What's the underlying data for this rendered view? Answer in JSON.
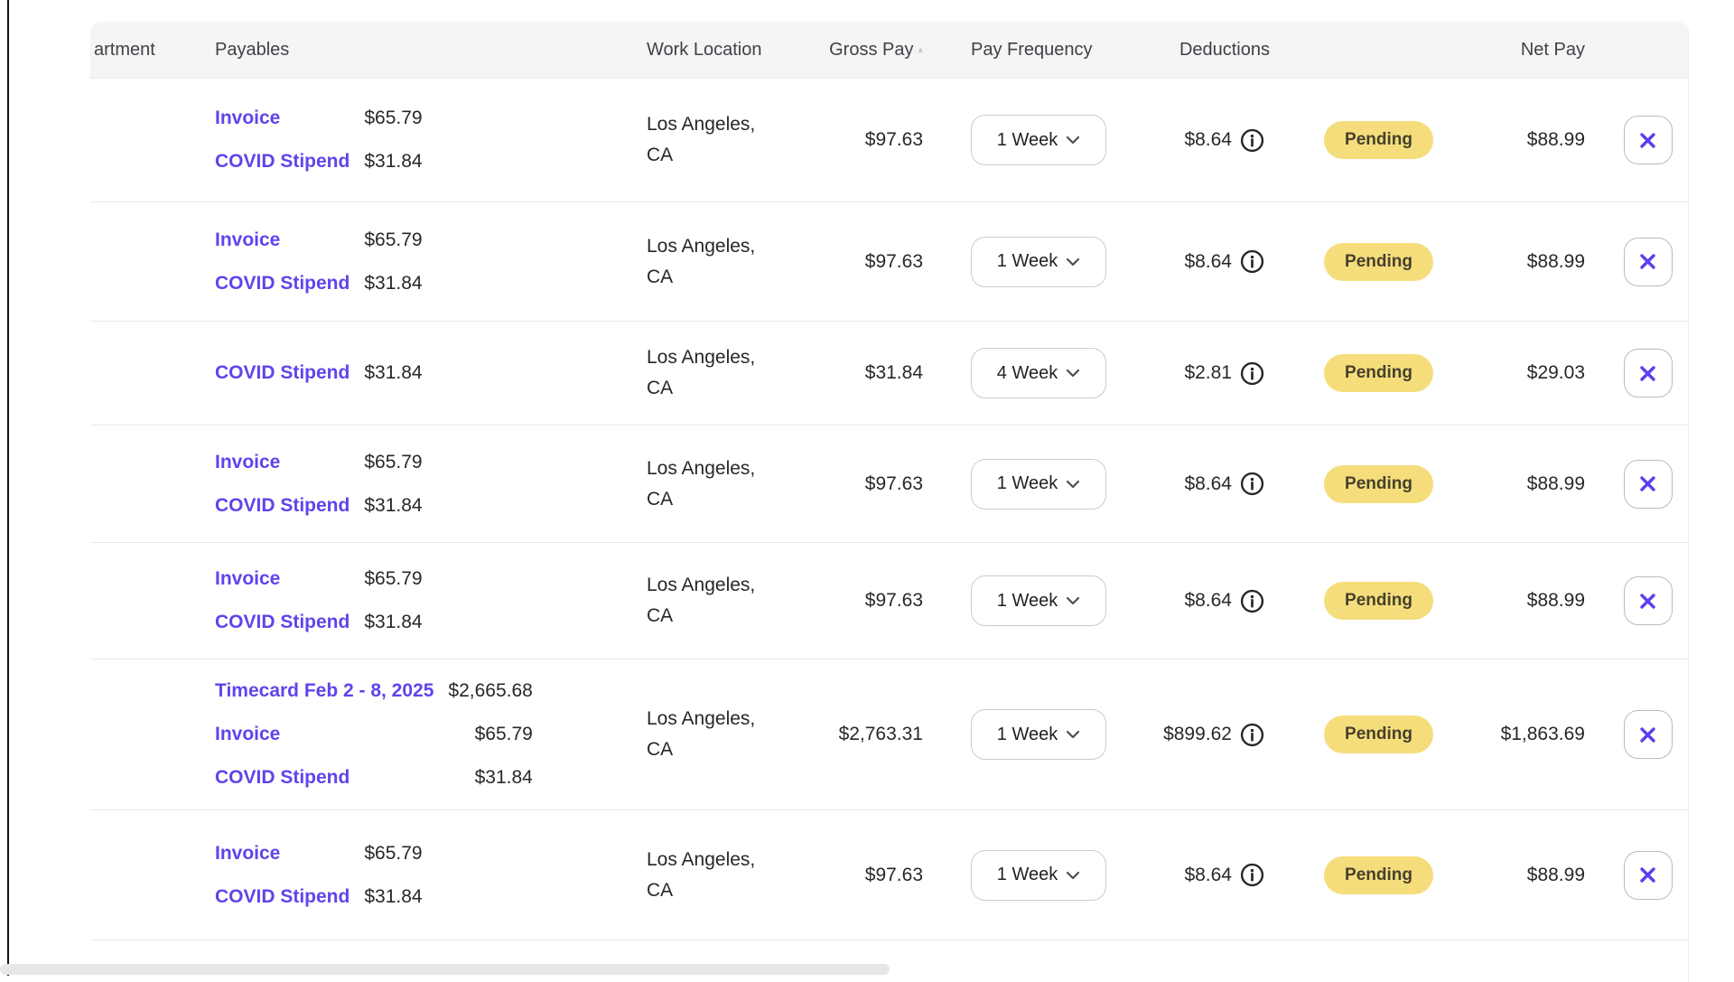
{
  "table": {
    "columns": {
      "department": "artment",
      "payables": "Payables",
      "work_location": "Work Location",
      "gross_pay": "Gross Pay",
      "pay_frequency": "Pay Frequency",
      "deductions": "Deductions",
      "net_pay": "Net Pay"
    },
    "rows": [
      {
        "payables": [
          {
            "label": "Invoice",
            "amount": "$65.79"
          },
          {
            "label": "COVID Stipend",
            "amount": "$31.84"
          }
        ],
        "work_location": "Los Angeles, CA",
        "gross_pay": "$97.63",
        "pay_frequency": "1 Week",
        "deductions": "$8.64",
        "status": "Pending",
        "net_pay": "$88.99"
      },
      {
        "payables": [
          {
            "label": "Invoice",
            "amount": "$65.79"
          },
          {
            "label": "COVID Stipend",
            "amount": "$31.84"
          }
        ],
        "work_location": "Los Angeles, CA",
        "gross_pay": "$97.63",
        "pay_frequency": "1 Week",
        "deductions": "$8.64",
        "status": "Pending",
        "net_pay": "$88.99"
      },
      {
        "payables": [
          {
            "label": "COVID Stipend",
            "amount": "$31.84"
          }
        ],
        "work_location": "Los Angeles, CA",
        "gross_pay": "$31.84",
        "pay_frequency": "4 Week",
        "deductions": "$2.81",
        "status": "Pending",
        "net_pay": "$29.03"
      },
      {
        "payables": [
          {
            "label": "Invoice",
            "amount": "$65.79"
          },
          {
            "label": "COVID Stipend",
            "amount": "$31.84"
          }
        ],
        "work_location": "Los Angeles, CA",
        "gross_pay": "$97.63",
        "pay_frequency": "1 Week",
        "deductions": "$8.64",
        "status": "Pending",
        "net_pay": "$88.99"
      },
      {
        "payables": [
          {
            "label": "Invoice",
            "amount": "$65.79"
          },
          {
            "label": "COVID Stipend",
            "amount": "$31.84"
          }
        ],
        "work_location": "Los Angeles, CA",
        "gross_pay": "$97.63",
        "pay_frequency": "1 Week",
        "deductions": "$8.64",
        "status": "Pending",
        "net_pay": "$88.99"
      },
      {
        "payables": [
          {
            "label": "Timecard Feb 2 - 8, 2025",
            "amount": "$2,665.68"
          },
          {
            "label": "Invoice",
            "amount": "$65.79"
          },
          {
            "label": "COVID Stipend",
            "amount": "$31.84"
          }
        ],
        "work_location": "Los Angeles, CA",
        "gross_pay": "$2,763.31",
        "pay_frequency": "1 Week",
        "deductions": "$899.62",
        "status": "Pending",
        "net_pay": "$1,863.69"
      },
      {
        "payables": [
          {
            "label": "Invoice",
            "amount": "$65.79"
          },
          {
            "label": "COVID Stipend",
            "amount": "$31.84"
          }
        ],
        "work_location": "Los Angeles, CA",
        "gross_pay": "$97.63",
        "pay_frequency": "1 Week",
        "deductions": "$8.64",
        "status": "Pending",
        "net_pay": "$88.99"
      }
    ]
  },
  "icons": {
    "sort_indicator": "▴",
    "chevron_down": "⌄",
    "info": "ⓘ",
    "close": "✕"
  },
  "colors": {
    "link_purple": "#5E45EC",
    "close_x_purple": "#5A3FF0",
    "badge_bg": "#F6DD7C",
    "badge_text": "#45412C",
    "header_bg": "#F5F5F6",
    "divider": "#E8E9EA"
  }
}
